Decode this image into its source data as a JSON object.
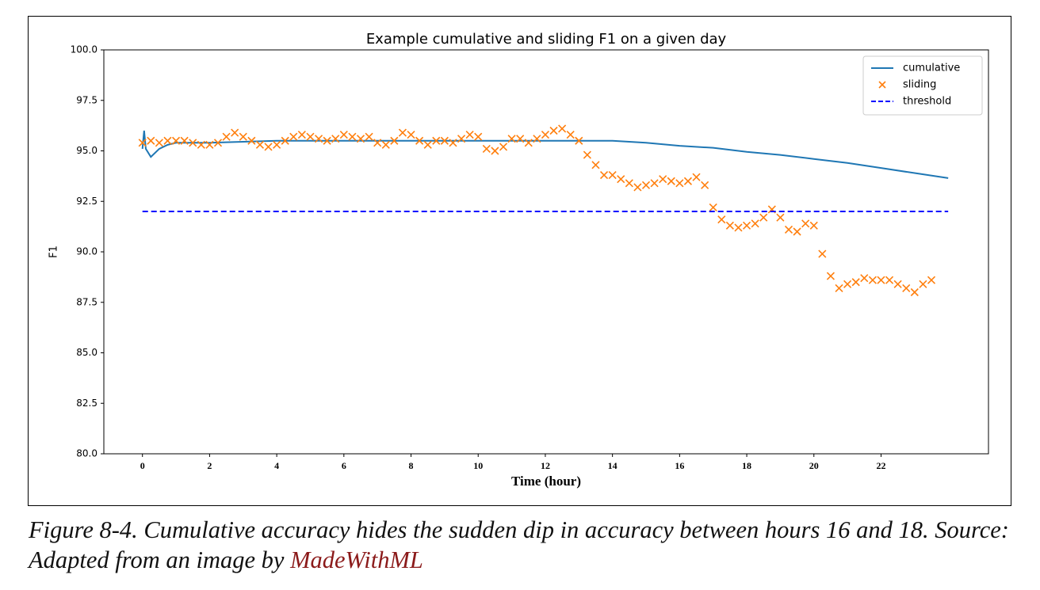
{
  "chart_data": {
    "type": "line",
    "title": "Example cumulative and sliding F1 on a given day",
    "xlabel": "Time (hour)",
    "ylabel": "F1",
    "xlim": [
      -1.15,
      25.2
    ],
    "ylim": [
      80,
      100
    ],
    "xticks": [
      0,
      2,
      4,
      6,
      8,
      10,
      12,
      14,
      16,
      18,
      20,
      22
    ],
    "yticks": [
      {
        "value": 80,
        "label": "80.0"
      },
      {
        "value": 82.5,
        "label": "82.5"
      },
      {
        "value": 85,
        "label": "85.0"
      },
      {
        "value": 87.5,
        "label": "87.5"
      },
      {
        "value": 90,
        "label": "90.0"
      },
      {
        "value": 92.5,
        "label": "92.5"
      },
      {
        "value": 95,
        "label": "95.0"
      },
      {
        "value": 97.5,
        "label": "97.5"
      },
      {
        "value": 100,
        "label": "100.0"
      }
    ],
    "legend": "upper right",
    "grid": false,
    "series": [
      {
        "name": "cumulative",
        "color": "#1f77b4",
        "linestyle": "solid",
        "x": [
          0,
          0.05,
          0.1,
          0.25,
          0.5,
          0.75,
          1,
          2,
          4,
          6,
          8,
          10,
          12,
          13,
          14,
          15,
          16,
          17,
          18,
          19,
          20,
          21,
          22,
          23,
          24
        ],
        "values": [
          95.1,
          96.0,
          95.1,
          94.7,
          95.1,
          95.3,
          95.4,
          95.4,
          95.5,
          95.5,
          95.5,
          95.5,
          95.5,
          95.5,
          95.5,
          95.4,
          95.25,
          95.15,
          94.95,
          94.8,
          94.6,
          94.4,
          94.15,
          93.9,
          93.65
        ]
      },
      {
        "name": "sliding",
        "color": "#ff7f0e",
        "linestyle": "none",
        "marker": "x",
        "x": [
          0,
          0.25,
          0.5,
          0.75,
          1,
          1.25,
          1.5,
          1.75,
          2,
          2.25,
          2.5,
          2.75,
          3,
          3.25,
          3.5,
          3.75,
          4,
          4.25,
          4.5,
          4.75,
          5,
          5.25,
          5.5,
          5.75,
          6,
          6.25,
          6.5,
          6.75,
          7,
          7.25,
          7.5,
          7.75,
          8,
          8.25,
          8.5,
          8.75,
          9,
          9.25,
          9.5,
          9.75,
          10,
          10.25,
          10.5,
          10.75,
          11,
          11.25,
          11.5,
          11.75,
          12,
          12.25,
          12.5,
          12.75,
          13,
          13.25,
          13.5,
          13.75,
          14,
          14.25,
          14.5,
          14.75,
          15,
          15.25,
          15.5,
          15.75,
          16,
          16.25,
          16.5,
          16.75,
          17,
          17.25,
          17.5,
          17.75,
          18,
          18.25,
          18.5,
          18.75,
          19,
          19.25,
          19.5,
          19.75,
          20,
          20.25,
          20.5,
          20.75,
          21,
          21.25,
          21.5,
          21.75,
          22,
          22.25,
          22.5,
          22.75,
          23,
          23.25,
          23.5
        ],
        "values": [
          95.4,
          95.5,
          95.4,
          95.5,
          95.5,
          95.5,
          95.4,
          95.3,
          95.3,
          95.4,
          95.7,
          95.9,
          95.7,
          95.5,
          95.3,
          95.2,
          95.3,
          95.5,
          95.7,
          95.8,
          95.7,
          95.6,
          95.5,
          95.6,
          95.8,
          95.7,
          95.6,
          95.7,
          95.4,
          95.3,
          95.5,
          95.9,
          95.8,
          95.5,
          95.3,
          95.5,
          95.5,
          95.4,
          95.6,
          95.8,
          95.7,
          95.1,
          95.0,
          95.2,
          95.6,
          95.6,
          95.4,
          95.6,
          95.8,
          96.0,
          96.1,
          95.8,
          95.5,
          94.8,
          94.3,
          93.8,
          93.8,
          93.6,
          93.4,
          93.2,
          93.3,
          93.4,
          93.6,
          93.5,
          93.4,
          93.5,
          93.7,
          93.3,
          92.2,
          91.6,
          91.3,
          91.2,
          91.3,
          91.4,
          91.7,
          92.1,
          91.7,
          91.1,
          91.0,
          91.4,
          91.3,
          89.9,
          88.8,
          88.2,
          88.4,
          88.5,
          88.7,
          88.6,
          88.6,
          88.6,
          88.4,
          88.2,
          88.0,
          88.4,
          88.6
        ]
      },
      {
        "name": "threshold",
        "color": "#0000ff",
        "linestyle": "dashed",
        "x": [
          0,
          24
        ],
        "values": [
          92,
          92
        ]
      }
    ]
  },
  "caption": {
    "text": "Figure 8-4. Cumulative accuracy hides the sudden dip in accuracy between hours 16 and 18. Source: Adapted from an image by ",
    "link": "MadeWithML"
  }
}
